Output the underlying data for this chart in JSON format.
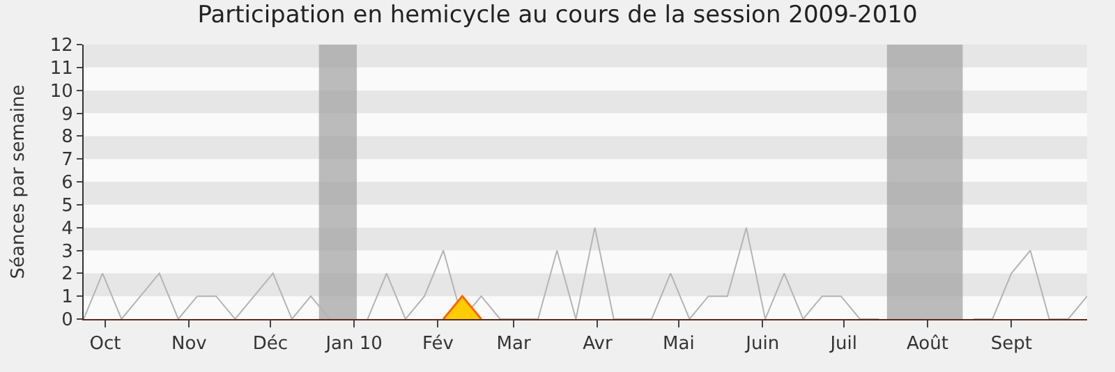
{
  "chart_data": {
    "type": "line",
    "title": "Participation en hemicycle au cours de la session 2009-2010",
    "ylabel": "Séances par semaine",
    "x": [
      "2009-09-23",
      "2009-09-30",
      "2009-10-07",
      "2009-10-14",
      "2009-10-21",
      "2009-10-28",
      "2009-11-04",
      "2009-11-11",
      "2009-11-18",
      "2009-11-25",
      "2009-12-02",
      "2009-12-09",
      "2009-12-16",
      "2009-12-23",
      "2009-12-30",
      "2010-01-06",
      "2010-01-13",
      "2010-01-20",
      "2010-01-27",
      "2010-02-03",
      "2010-02-10",
      "2010-02-17",
      "2010-02-24",
      "2010-03-03",
      "2010-03-10",
      "2010-03-17",
      "2010-03-24",
      "2010-03-31",
      "2010-04-07",
      "2010-04-14",
      "2010-04-21",
      "2010-04-28",
      "2010-05-05",
      "2010-05-12",
      "2010-05-19",
      "2010-05-26",
      "2010-06-02",
      "2010-06-09",
      "2010-06-16",
      "2010-06-23",
      "2010-06-30",
      "2010-07-07",
      "2010-07-14",
      "2010-07-21",
      "2010-07-28",
      "2010-08-04",
      "2010-08-11",
      "2010-08-18",
      "2010-08-25",
      "2010-09-01",
      "2010-09-08",
      "2010-09-15",
      "2010-09-22",
      "2010-09-29"
    ],
    "series": [
      {
        "color": "#b4b4b4",
        "values": [
          0,
          2,
          0,
          1,
          2,
          0,
          1,
          1,
          0,
          1,
          2,
          0,
          1,
          0,
          null,
          0,
          2,
          0,
          1,
          3,
          0,
          1,
          0,
          0,
          0,
          3,
          0,
          4,
          0,
          0,
          0,
          2,
          0,
          1,
          1,
          4,
          0,
          2,
          0,
          1,
          1,
          0,
          0,
          null,
          null,
          null,
          null,
          0,
          0,
          2,
          3,
          0,
          0,
          1
        ]
      },
      {
        "type": "area",
        "color": "#ffcc00",
        "x": [
          "2010-02-03",
          "2010-02-10",
          "2010-02-17"
        ],
        "values": [
          0,
          1,
          0
        ]
      }
    ],
    "xlim": [
      "2009-09-23",
      "2010-09-29"
    ],
    "xticks": [
      {
        "value": "2009-10-01",
        "label": "Oct"
      },
      {
        "value": "2009-11-01",
        "label": "Nov"
      },
      {
        "value": "2009-12-01",
        "label": "Déc"
      },
      {
        "value": "2010-01-01",
        "label": "Jan 10"
      },
      {
        "value": "2010-02-01",
        "label": "Fév"
      },
      {
        "value": "2010-03-01",
        "label": "Mar"
      },
      {
        "value": "2010-04-01",
        "label": "Avr"
      },
      {
        "value": "2010-05-01",
        "label": "Mai"
      },
      {
        "value": "2010-06-01",
        "label": "Juin"
      },
      {
        "value": "2010-07-01",
        "label": "Juil"
      },
      {
        "value": "2010-08-01",
        "label": "Août"
      },
      {
        "value": "2010-09-01",
        "label": "Sept"
      }
    ],
    "ylim": [
      0,
      12
    ],
    "yticks": [
      0,
      1,
      2,
      3,
      4,
      5,
      6,
      7,
      8,
      9,
      10,
      11,
      12
    ],
    "bands": [
      {
        "axis": "x",
        "from": "2009-12-19",
        "to": "2010-01-02",
        "color": "#a0a0a0"
      },
      {
        "axis": "x",
        "from": "2010-07-17",
        "to": "2010-08-14",
        "color": "#a0a0a0"
      }
    ],
    "marker": "none"
  }
}
